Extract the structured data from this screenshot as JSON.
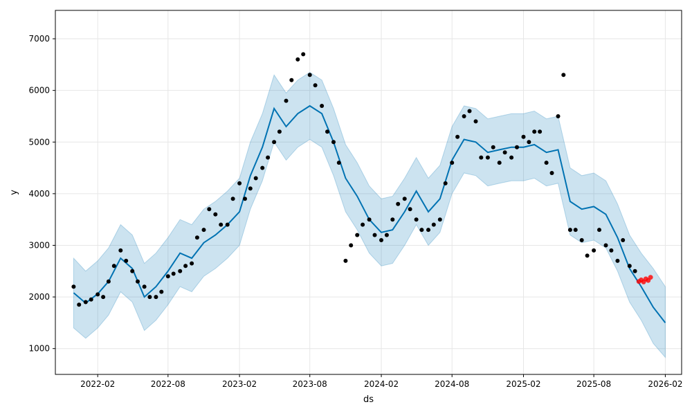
{
  "chart_data": {
    "type": "line",
    "title": "",
    "xlabel": "ds",
    "ylabel": "y",
    "xlim": [
      "2021-10-15",
      "2026-03-15"
    ],
    "ylim": [
      500,
      7550
    ],
    "x_ticks": [
      "2022-02",
      "2022-08",
      "2023-02",
      "2023-08",
      "2024-02",
      "2024-08",
      "2025-02",
      "2025-08",
      "2026-02"
    ],
    "x_tick_dates": [
      "2022-02-01",
      "2022-08-01",
      "2023-02-01",
      "2023-08-01",
      "2024-02-01",
      "2024-08-01",
      "2025-02-01",
      "2025-08-01",
      "2026-02-01"
    ],
    "y_ticks": [
      1000,
      2000,
      3000,
      4000,
      5000,
      6000,
      7000
    ],
    "grid": true,
    "colors": {
      "forecast_line": "#0072b2",
      "uncertainty_band": "#0072b2",
      "observed_points": "#000000",
      "recent_points": "#ff0000",
      "grid": "#e6e6e6"
    },
    "series": [
      {
        "kind": "forecast_line",
        "x": [
          "2021-12-01",
          "2022-01-01",
          "2022-02-01",
          "2022-03-01",
          "2022-04-01",
          "2022-05-01",
          "2022-06-01",
          "2022-07-01",
          "2022-08-01",
          "2022-09-01",
          "2022-10-01",
          "2022-11-01",
          "2022-12-01",
          "2023-01-01",
          "2023-02-01",
          "2023-03-01",
          "2023-04-01",
          "2023-05-01",
          "2023-06-01",
          "2023-07-01",
          "2023-08-01",
          "2023-09-01",
          "2023-10-01",
          "2023-11-01",
          "2023-12-01",
          "2024-01-01",
          "2024-02-01",
          "2024-03-01",
          "2024-04-01",
          "2024-05-01",
          "2024-06-01",
          "2024-07-01",
          "2024-08-01",
          "2024-09-01",
          "2024-10-01",
          "2024-11-01",
          "2024-12-01",
          "2025-01-01",
          "2025-02-01",
          "2025-03-01",
          "2025-04-01",
          "2025-05-01",
          "2025-06-01",
          "2025-07-01",
          "2025-08-01",
          "2025-09-01",
          "2025-10-01",
          "2025-11-01",
          "2025-12-01",
          "2026-01-01",
          "2026-02-01"
        ],
        "y": [
          2080,
          1880,
          2060,
          2300,
          2750,
          2550,
          2000,
          2200,
          2500,
          2850,
          2750,
          3050,
          3200,
          3400,
          3650,
          4350,
          4900,
          5650,
          5300,
          5550,
          5700,
          5550,
          5000,
          4300,
          3950,
          3500,
          3250,
          3300,
          3650,
          4050,
          3650,
          3900,
          4650,
          5050,
          5000,
          4800,
          4850,
          4900,
          4900,
          4950,
          4800,
          4850,
          3850,
          3700,
          3750,
          3600,
          3150,
          2550,
          2200,
          1800,
          1500
        ]
      },
      {
        "kind": "uncertainty_upper",
        "x": [
          "2021-12-01",
          "2022-01-01",
          "2022-02-01",
          "2022-03-01",
          "2022-04-01",
          "2022-05-01",
          "2022-06-01",
          "2022-07-01",
          "2022-08-01",
          "2022-09-01",
          "2022-10-01",
          "2022-11-01",
          "2022-12-01",
          "2023-01-01",
          "2023-02-01",
          "2023-03-01",
          "2023-04-01",
          "2023-05-01",
          "2023-06-01",
          "2023-07-01",
          "2023-08-01",
          "2023-09-01",
          "2023-10-01",
          "2023-11-01",
          "2023-12-01",
          "2024-01-01",
          "2024-02-01",
          "2024-03-01",
          "2024-04-01",
          "2024-05-01",
          "2024-06-01",
          "2024-07-01",
          "2024-08-01",
          "2024-09-01",
          "2024-10-01",
          "2024-11-01",
          "2024-12-01",
          "2025-01-01",
          "2025-02-01",
          "2025-03-01",
          "2025-04-01",
          "2025-05-01",
          "2025-06-01",
          "2025-07-01",
          "2025-08-01",
          "2025-09-01",
          "2025-10-01",
          "2025-11-01",
          "2025-12-01",
          "2026-01-01",
          "2026-02-01"
        ],
        "y": [
          2750,
          2500,
          2700,
          2950,
          3400,
          3200,
          2650,
          2850,
          3150,
          3500,
          3400,
          3700,
          3850,
          4050,
          4300,
          5000,
          5550,
          6300,
          5950,
          6200,
          6350,
          6200,
          5650,
          4950,
          4600,
          4150,
          3900,
          3950,
          4300,
          4700,
          4300,
          4550,
          5300,
          5700,
          5650,
          5450,
          5500,
          5550,
          5550,
          5600,
          5450,
          5500,
          4500,
          4350,
          4400,
          4250,
          3800,
          3200,
          2850,
          2550,
          2200
        ]
      },
      {
        "kind": "uncertainty_lower",
        "x": [
          "2021-12-01",
          "2022-01-01",
          "2022-02-01",
          "2022-03-01",
          "2022-04-01",
          "2022-05-01",
          "2022-06-01",
          "2022-07-01",
          "2022-08-01",
          "2022-09-01",
          "2022-10-01",
          "2022-11-01",
          "2022-12-01",
          "2023-01-01",
          "2023-02-01",
          "2023-03-01",
          "2023-04-01",
          "2023-05-01",
          "2023-06-01",
          "2023-07-01",
          "2023-08-01",
          "2023-09-01",
          "2023-10-01",
          "2023-11-01",
          "2023-12-01",
          "2024-01-01",
          "2024-02-01",
          "2024-03-01",
          "2024-04-01",
          "2024-05-01",
          "2024-06-01",
          "2024-07-01",
          "2024-08-01",
          "2024-09-01",
          "2024-10-01",
          "2024-11-01",
          "2024-12-01",
          "2025-01-01",
          "2025-02-01",
          "2025-03-01",
          "2025-04-01",
          "2025-05-01",
          "2025-06-01",
          "2025-07-01",
          "2025-08-01",
          "2025-09-01",
          "2025-10-01",
          "2025-11-01",
          "2025-12-01",
          "2026-01-01",
          "2026-02-01"
        ],
        "y": [
          1400,
          1200,
          1400,
          1650,
          2100,
          1900,
          1350,
          1550,
          1850,
          2200,
          2100,
          2400,
          2550,
          2750,
          3000,
          3700,
          4250,
          5000,
          4650,
          4900,
          5050,
          4900,
          4350,
          3650,
          3300,
          2850,
          2600,
          2650,
          3000,
          3400,
          3000,
          3250,
          4000,
          4400,
          4350,
          4150,
          4200,
          4250,
          4250,
          4300,
          4150,
          4200,
          3200,
          3050,
          3100,
          2950,
          2500,
          1900,
          1550,
          1100,
          830
        ]
      },
      {
        "kind": "observed_points",
        "x": [
          "2021-12-01",
          "2021-12-15",
          "2022-01-01",
          "2022-01-15",
          "2022-02-01",
          "2022-02-15",
          "2022-03-01",
          "2022-03-15",
          "2022-04-01",
          "2022-04-15",
          "2022-05-01",
          "2022-05-15",
          "2022-06-01",
          "2022-06-15",
          "2022-07-01",
          "2022-07-15",
          "2022-08-01",
          "2022-08-15",
          "2022-09-01",
          "2022-09-15",
          "2022-10-01",
          "2022-10-15",
          "2022-11-01",
          "2022-11-15",
          "2022-12-01",
          "2022-12-15",
          "2023-01-01",
          "2023-01-15",
          "2023-02-01",
          "2023-02-15",
          "2023-03-01",
          "2023-03-15",
          "2023-04-01",
          "2023-04-15",
          "2023-05-01",
          "2023-05-15",
          "2023-06-01",
          "2023-06-15",
          "2023-07-01",
          "2023-07-15",
          "2023-08-01",
          "2023-08-15",
          "2023-09-01",
          "2023-09-15",
          "2023-10-01",
          "2023-10-15",
          "2023-11-01",
          "2023-11-15",
          "2023-12-01",
          "2023-12-15",
          "2024-01-01",
          "2024-01-15",
          "2024-02-01",
          "2024-02-15",
          "2024-03-01",
          "2024-03-15",
          "2024-04-01",
          "2024-04-15",
          "2024-05-01",
          "2024-05-15",
          "2024-06-01",
          "2024-06-15",
          "2024-07-01",
          "2024-07-15",
          "2024-08-01",
          "2024-08-15",
          "2024-09-01",
          "2024-09-15",
          "2024-10-01",
          "2024-10-15",
          "2024-11-01",
          "2024-11-15",
          "2024-12-01",
          "2024-12-15",
          "2025-01-01",
          "2025-01-15",
          "2025-02-01",
          "2025-02-15",
          "2025-03-01",
          "2025-03-15",
          "2025-04-01",
          "2025-04-15",
          "2025-05-01",
          "2025-05-15",
          "2025-06-01",
          "2025-06-15",
          "2025-07-01",
          "2025-07-15",
          "2025-08-01",
          "2025-08-15",
          "2025-09-01",
          "2025-09-15",
          "2025-10-01",
          "2025-10-15",
          "2025-11-01",
          "2025-11-15"
        ],
        "y": [
          2200,
          1850,
          1900,
          1950,
          2050,
          2000,
          2300,
          2600,
          2900,
          2700,
          2500,
          2300,
          2200,
          2000,
          2000,
          2100,
          2400,
          2450,
          2500,
          2600,
          2650,
          3150,
          3300,
          3700,
          3600,
          3400,
          3400,
          3900,
          4200,
          3900,
          4100,
          4300,
          4500,
          4700,
          5000,
          5200,
          5800,
          6200,
          6600,
          6700,
          6300,
          6100,
          5700,
          5200,
          5000,
          4600,
          2700,
          3000,
          3200,
          3400,
          3500,
          3200,
          3100,
          3200,
          3500,
          3800,
          3900,
          3700,
          3500,
          3300,
          3300,
          3400,
          3500,
          4200,
          4600,
          5100,
          5500,
          5600,
          5400,
          4700,
          4700,
          4900,
          4600,
          4800,
          4700,
          4900,
          5100,
          5000,
          5200,
          5200,
          4600,
          4400,
          5500,
          6300,
          3300,
          3300,
          3100,
          2800,
          2900,
          3300,
          3000,
          2900,
          2700,
          3100,
          2600,
          2500
        ]
      },
      {
        "kind": "recent_points",
        "x": [
          "2025-11-25",
          "2025-12-01",
          "2025-12-07",
          "2025-12-13",
          "2025-12-19",
          "2025-12-25"
        ],
        "y": [
          2300,
          2330,
          2290,
          2350,
          2320,
          2380
        ]
      }
    ]
  }
}
